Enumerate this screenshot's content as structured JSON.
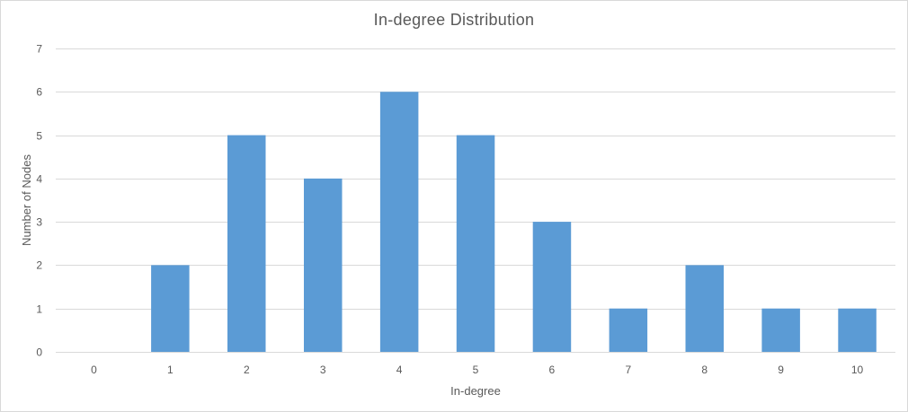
{
  "chart_data": {
    "type": "bar",
    "title": "In-degree  Distribution",
    "xlabel": "In-degree",
    "ylabel": "Number of Nodes",
    "categories": [
      "0",
      "1",
      "2",
      "3",
      "4",
      "5",
      "6",
      "7",
      "8",
      "9",
      "10"
    ],
    "values": [
      0,
      2,
      5,
      4,
      6,
      5,
      3,
      1,
      2,
      1,
      1
    ],
    "ylim": [
      0,
      7
    ],
    "yticks": [
      0,
      1,
      2,
      3,
      4,
      5,
      6,
      7
    ],
    "grid": true,
    "bar_color": "#5b9bd5",
    "grid_color": "#d9d9d9",
    "text_color": "#595959"
  }
}
